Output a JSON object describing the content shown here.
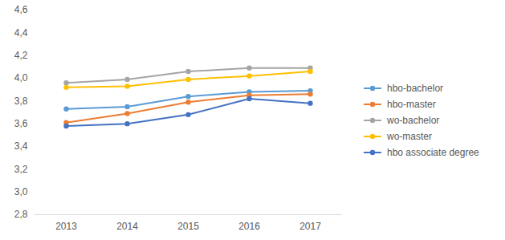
{
  "chart_data": {
    "type": "line",
    "categories": [
      "2013",
      "2014",
      "2015",
      "2016",
      "2017"
    ],
    "series": [
      {
        "name": "hbo-bachelor",
        "color": "#5b9bd5",
        "values": [
          3.73,
          3.75,
          3.84,
          3.88,
          3.89
        ]
      },
      {
        "name": "hbo-master",
        "color": "#ed7d31",
        "values": [
          3.61,
          3.69,
          3.79,
          3.85,
          3.86
        ]
      },
      {
        "name": "wo-bachelor",
        "color": "#a5a5a5",
        "values": [
          3.96,
          3.99,
          4.06,
          4.09,
          4.09
        ]
      },
      {
        "name": "wo-master",
        "color": "#ffc000",
        "values": [
          3.92,
          3.93,
          3.99,
          4.02,
          4.06
        ]
      },
      {
        "name": "hbo associate degree",
        "color": "#4472c4",
        "values": [
          3.58,
          3.6,
          3.68,
          3.82,
          3.78
        ]
      }
    ],
    "ylim": [
      2.8,
      4.6
    ],
    "yticks": [
      {
        "value": 2.8,
        "label": "2,8"
      },
      {
        "value": 3.0,
        "label": "3,0"
      },
      {
        "value": 3.2,
        "label": "3,2"
      },
      {
        "value": 3.4,
        "label": "3,4"
      },
      {
        "value": 3.6,
        "label": "3,6"
      },
      {
        "value": 3.8,
        "label": "3,8"
      },
      {
        "value": 4.0,
        "label": "4,0"
      },
      {
        "value": 4.2,
        "label": "4,2"
      },
      {
        "value": 4.4,
        "label": "4,4"
      },
      {
        "value": 4.6,
        "label": "4,6"
      }
    ],
    "grid": false,
    "legend": "right",
    "marker": "circle",
    "line_style": "solid"
  }
}
